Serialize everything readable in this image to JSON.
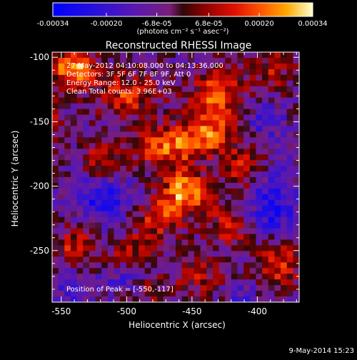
{
  "colorbar": {
    "ticks": [
      "-0.00034",
      "-0.00020",
      "-6.8e-05",
      "6.8e-05",
      "0.00020",
      "0.00034"
    ],
    "units": "(photons cm⁻² s⁻¹ asec⁻²)",
    "vmin": -0.00034,
    "vmax": 0.00034
  },
  "annotations": {
    "time": "27-May-2012 04:10:08.000 to 04:13:36.000",
    "detectors": "Detectors: 3F 5F 6F 7F 8F 9F, Att 0",
    "energy": "Energy Range: 12.0 - 25.0 keV",
    "clean": "Clean    Total counts: 3.96E+03",
    "peak": "Position of Peak = [-550,-117]"
  },
  "footer": {
    "date": "9-May-2014 15:23"
  },
  "chart_data": {
    "type": "heatmap",
    "title": "Reconstructed RHESSI Image",
    "xlabel": "Heliocentric X (arcsec)",
    "ylabel": "Heliocentric Y (arcsec)",
    "xlim": [
      -557,
      -368
    ],
    "ylim": [
      -290,
      -96
    ],
    "x_ticks": [
      "-550",
      "-500",
      "-450",
      "-400"
    ],
    "y_ticks": [
      "-100",
      "-150",
      "-200",
      "-250"
    ],
    "x_tick_values": [
      -550,
      -500,
      -450,
      -400
    ],
    "y_tick_values": [
      -100,
      -150,
      -200,
      -250
    ],
    "grid": false,
    "colormap": "rainbow-red-yellow-white",
    "peak_position": [
      -550,
      -117
    ],
    "grid_size": [
      40,
      44
    ],
    "sources": [
      {
        "x": -455,
        "y": -205,
        "amp": 0.00033,
        "sx": 12,
        "sy": 11
      },
      {
        "x": -470,
        "y": -170,
        "amp": 0.00025,
        "sx": 16,
        "sy": 12
      },
      {
        "x": -430,
        "y": -130,
        "amp": 0.00024,
        "sx": 14,
        "sy": 14
      },
      {
        "x": -540,
        "y": -110,
        "amp": 0.00034,
        "sx": 12,
        "sy": 9
      },
      {
        "x": -500,
        "y": -130,
        "amp": 0.0002,
        "sx": 16,
        "sy": 12
      },
      {
        "x": -440,
        "y": -160,
        "amp": 0.00023,
        "sx": 14,
        "sy": 12
      },
      {
        "x": -410,
        "y": -185,
        "amp": 0.00018,
        "sx": 12,
        "sy": 14
      },
      {
        "x": -475,
        "y": -225,
        "amp": 0.0002,
        "sx": 12,
        "sy": 10
      },
      {
        "x": -420,
        "y": -230,
        "amp": 0.00016,
        "sx": 14,
        "sy": 12
      },
      {
        "x": -495,
        "y": -250,
        "amp": 0.00015,
        "sx": 12,
        "sy": 10
      },
      {
        "x": -385,
        "y": -260,
        "amp": 0.00021,
        "sx": 12,
        "sy": 14
      },
      {
        "x": -520,
        "y": -180,
        "amp": 0.00016,
        "sx": 10,
        "sy": 10
      },
      {
        "x": -540,
        "y": -245,
        "amp": 0.00017,
        "sx": 10,
        "sy": 10
      },
      {
        "x": -390,
        "y": -110,
        "amp": 0.00015,
        "sx": 12,
        "sy": 12
      },
      {
        "x": -485,
        "y": -280,
        "amp": 0.00013,
        "sx": 14,
        "sy": 8
      },
      {
        "x": -560,
        "y": -150,
        "amp": 0.00012,
        "sx": 8,
        "sy": 12
      },
      {
        "x": -445,
        "y": -270,
        "amp": 0.00014,
        "sx": 12,
        "sy": 10
      }
    ],
    "negative_regions": [
      {
        "x": -520,
        "y": -210,
        "amp": -0.0002,
        "sx": 14,
        "sy": 12
      },
      {
        "x": -390,
        "y": -215,
        "amp": -0.00022,
        "sx": 14,
        "sy": 18
      },
      {
        "x": -395,
        "y": -150,
        "amp": -0.00012,
        "sx": 12,
        "sy": 12
      },
      {
        "x": -500,
        "y": -275,
        "amp": -0.00015,
        "sx": 12,
        "sy": 8
      },
      {
        "x": -540,
        "y": -280,
        "amp": -0.00012,
        "sx": 10,
        "sy": 8
      },
      {
        "x": -410,
        "y": -285,
        "amp": -0.0001,
        "sx": 10,
        "sy": 6
      }
    ],
    "noise_amplitude": 9e-05,
    "background": -6e-05
  }
}
